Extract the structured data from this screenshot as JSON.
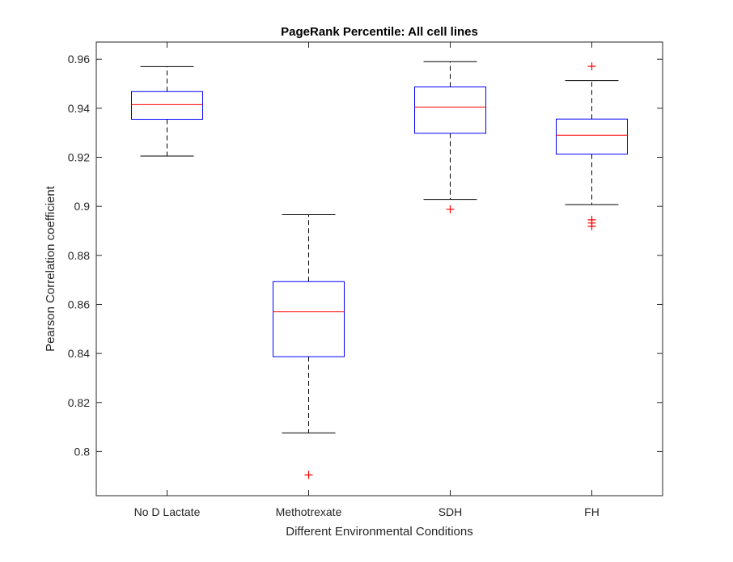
{
  "chart_data": {
    "type": "box",
    "title": "PageRank Percentile: All cell lines",
    "xlabel": "Different Environmental Conditions",
    "ylabel": "Pearson Correlation coefficient",
    "ylim": [
      0.782,
      0.967
    ],
    "yticks": [
      0.8,
      0.82,
      0.84,
      0.86,
      0.88,
      0.9,
      0.92,
      0.94,
      0.96
    ],
    "ytick_labels": [
      "0.8",
      "0.82",
      "0.84",
      "0.86",
      "0.88",
      "0.9",
      "0.92",
      "0.94",
      "0.96"
    ],
    "categories": [
      "No D Lactate",
      "Methotrexate",
      "SDH",
      "FH"
    ],
    "boxes": [
      {
        "category": "No D Lactate",
        "whisker_low": 0.9205,
        "q1": 0.9355,
        "median": 0.9415,
        "q3": 0.9468,
        "whisker_high": 0.957,
        "outliers": []
      },
      {
        "category": "Methotrexate",
        "whisker_low": 0.8076,
        "q1": 0.8387,
        "median": 0.857,
        "q3": 0.8693,
        "whisker_high": 0.8966,
        "outliers": [
          0.7905
        ]
      },
      {
        "category": "SDH",
        "whisker_low": 0.9028,
        "q1": 0.9298,
        "median": 0.9405,
        "q3": 0.9487,
        "whisker_high": 0.959,
        "outliers": [
          0.8988
        ]
      },
      {
        "category": "FH",
        "whisker_low": 0.9007,
        "q1": 0.9213,
        "median": 0.929,
        "q3": 0.9356,
        "whisker_high": 0.9513,
        "outliers": [
          0.9571,
          0.8945,
          0.8932,
          0.8919
        ]
      }
    ],
    "grid": false,
    "colors": {
      "box": "#0000ff",
      "median": "#ff0000",
      "whisker": "#000000",
      "outlier": "#ff0000",
      "axes": "#262626"
    }
  }
}
